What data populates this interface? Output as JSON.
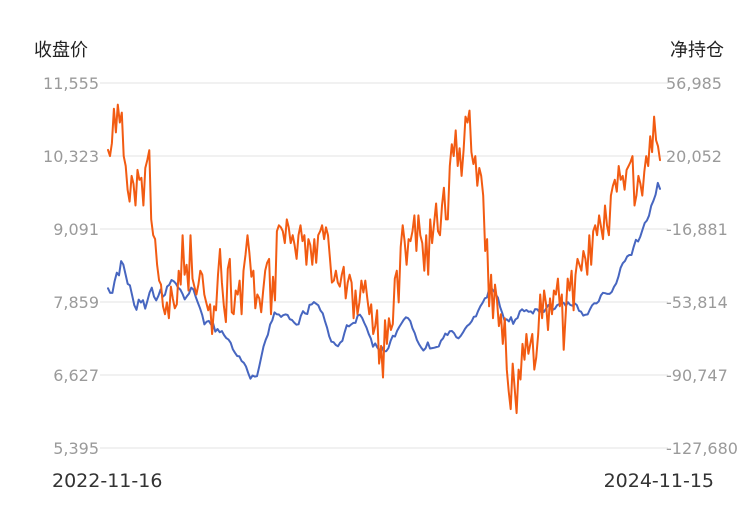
{
  "chart_data": {
    "type": "line",
    "y_left_label": "收盘价",
    "y_right_label": "净持仓",
    "x_start_label": "2022-11-16",
    "x_end_label": "2024-11-15",
    "y_left_ticks": [
      "11,555",
      "10,323",
      "9,091",
      "7,859",
      "6,627",
      "5,395"
    ],
    "y_right_ticks": [
      "56,985",
      "20,052",
      "-16,881",
      "-53,814",
      "-90,747",
      "-127,680"
    ],
    "y_left_range": [
      5395,
      11555
    ],
    "y_right_range": [
      -127680,
      56985
    ],
    "grid": true,
    "series": [
      {
        "axis": "left",
        "color": "#4766c0",
        "values": [
          8090,
          8012,
          8012,
          8210,
          8353,
          8309,
          8550,
          8492,
          8330,
          8165,
          8140,
          7975,
          7805,
          7728,
          7900,
          7850,
          7890,
          7748,
          7880,
          8020,
          8100,
          7950,
          7886,
          7963,
          8070,
          7949,
          7980,
          8121,
          8150,
          8230,
          8210,
          8170,
          8102,
          8070,
          7997,
          7903,
          7956,
          8000,
          8100,
          8070,
          7951,
          7850,
          7754,
          7642,
          7481,
          7527,
          7540,
          7479,
          7501,
          7360,
          7403,
          7350,
          7368,
          7300,
          7250,
          7224,
          7170,
          7059,
          7001,
          6948,
          6941,
          6863,
          6833,
          6770,
          6660,
          6564,
          6618,
          6600,
          6606,
          6760,
          6934,
          7106,
          7221,
          7307,
          7479,
          7550,
          7684,
          7652,
          7648,
          7607,
          7637,
          7650,
          7640,
          7568,
          7556,
          7511,
          7476,
          7482,
          7624,
          7703,
          7667,
          7657,
          7810,
          7818,
          7858,
          7831,
          7803,
          7716,
          7670,
          7540,
          7431,
          7280,
          7189,
          7180,
          7133,
          7112,
          7173,
          7204,
          7346,
          7467,
          7448,
          7479,
          7507,
          7507,
          7631,
          7644,
          7593,
          7505,
          7427,
          7320,
          7239,
          7105,
          7160,
          7089,
          7035,
          7098,
          7027,
          7029,
          7080,
          7203,
          7289,
          7277,
          7371,
          7439,
          7497,
          7558,
          7601,
          7586,
          7537,
          7415,
          7335,
          7219,
          7149,
          7089,
          7040,
          7079,
          7178,
          7074,
          7081,
          7088,
          7100,
          7110,
          7206,
          7247,
          7326,
          7301,
          7367,
          7369,
          7333,
          7265,
          7247,
          7287,
          7343,
          7405,
          7455,
          7485,
          7532,
          7609,
          7616,
          7710,
          7788,
          7846,
          7919,
          7939,
          8076,
          8091,
          8048,
          7987,
          7931,
          7775,
          7672,
          7547,
          7567,
          7532,
          7602,
          7489,
          7564,
          7590,
          7700,
          7735,
          7704,
          7724,
          7694,
          7700,
          7665,
          7740,
          7734,
          7685,
          7752,
          7692,
          7750,
          7809,
          7793,
          7728,
          7746,
          7803,
          7823,
          7851,
          7848,
          7791,
          7855,
          7810,
          7796,
          7837,
          7809,
          7710,
          7696,
          7630,
          7645,
          7650,
          7733,
          7804,
          7839,
          7835,
          7869,
          7970,
          8014,
          8007,
          7995,
          7996,
          8029,
          8116,
          8173,
          8286,
          8436,
          8513,
          8553,
          8627,
          8653,
          8653,
          8790,
          8908,
          8880,
          8962,
          9079,
          9193,
          9235,
          9316,
          9482,
          9567,
          9671,
          9869,
          9767
        ]
      },
      {
        "axis": "right",
        "color": "#f25b12",
        "values": [
          23124,
          19987,
          26563,
          44000,
          32000,
          46052,
          37000,
          42000,
          20000,
          15000,
          3000,
          -3000,
          10000,
          6000,
          -5000,
          13000,
          8000,
          9000,
          -5000,
          14000,
          18000,
          23000,
          -12000,
          -20000,
          -22000,
          -35000,
          -43000,
          -45000,
          -56000,
          -60000,
          -54000,
          -62000,
          -46000,
          -52000,
          -57000,
          -55000,
          -38000,
          -45000,
          -20000,
          -40000,
          -35000,
          -48000,
          -20000,
          -42000,
          -46000,
          -50000,
          -45000,
          -38000,
          -40000,
          -50000,
          -54000,
          -58000,
          -55000,
          -70000,
          -56000,
          -58000,
          -40000,
          -27000,
          -44000,
          -56000,
          -64000,
          -37000,
          -32000,
          -59000,
          -60000,
          -48000,
          -50000,
          -43000,
          -60000,
          -38000,
          -30000,
          -20000,
          -29000,
          -41000,
          -38000,
          -57000,
          -50000,
          -52000,
          -59000,
          -48000,
          -38000,
          -34000,
          -32000,
          -60000,
          -41000,
          -53000,
          -18000,
          -15000,
          -16000,
          -18000,
          -24000,
          -12000,
          -16000,
          -24000,
          -20000,
          -25000,
          -32000,
          -20000,
          -15000,
          -23000,
          -20000,
          -35000,
          -22000,
          -25000,
          -35000,
          -22000,
          -34000,
          -20000,
          -18000,
          -15000,
          -22000,
          -16000,
          -20000,
          -32000,
          -44000,
          -43000,
          -38000,
          -44000,
          -46000,
          -40000,
          -36000,
          -52000,
          -44000,
          -40000,
          -44000,
          -62000,
          -48000,
          -60000,
          -54000,
          -43000,
          -49000,
          -43000,
          -52000,
          -60000,
          -55000,
          -70000,
          -66000,
          -58000,
          -85000,
          -76000,
          -92000,
          -63000,
          -75000,
          -62000,
          -68000,
          -65000,
          -42000,
          -38000,
          -54000,
          -26000,
          -15000,
          -23000,
          -35000,
          -22000,
          -23000,
          -18000,
          -10000,
          -28000,
          -10000,
          -20000,
          -24000,
          -38000,
          -20000,
          -40000,
          -12000,
          -24000,
          -14000,
          -4000,
          -18000,
          -20000,
          -5000,
          4000,
          -12000,
          -12000,
          15000,
          26000,
          20000,
          33000,
          15000,
          24000,
          10000,
          23000,
          40000,
          37000,
          43000,
          22000,
          16000,
          20000,
          5000,
          14000,
          10000,
          0,
          -28000,
          -22000,
          -56000,
          -40000,
          -62000,
          -45000,
          -53000,
          -66000,
          -60000,
          -75000,
          -62000,
          -88000,
          -99000,
          -108000,
          -85000,
          -97000,
          -110000,
          -88000,
          -93000,
          -75000,
          -83000,
          -70000,
          -80000,
          -75000,
          -70000,
          -88000,
          -82000,
          -70000,
          -50000,
          -62000,
          -48000,
          -55000,
          -68000,
          -52000,
          -60000,
          -48000,
          -50000,
          -42000,
          -56000,
          -50000,
          -78000,
          -60000,
          -42000,
          -48000,
          -38000,
          -58000,
          -40000,
          -32000,
          -35000,
          -38000,
          -28000,
          -32000,
          -40000,
          -20000,
          -35000,
          -18000,
          -15000,
          -20000,
          -10000,
          -16000,
          -22000,
          -5000,
          -15000,
          -20000,
          0,
          5000,
          8000,
          2000,
          15000,
          8000,
          10000,
          3000,
          13000,
          15000,
          17000,
          20000,
          -5000,
          0,
          10000,
          6000,
          0,
          12000,
          20000,
          15000,
          30000,
          22000,
          40000,
          28000,
          25000,
          18000
        ]
      }
    ]
  }
}
